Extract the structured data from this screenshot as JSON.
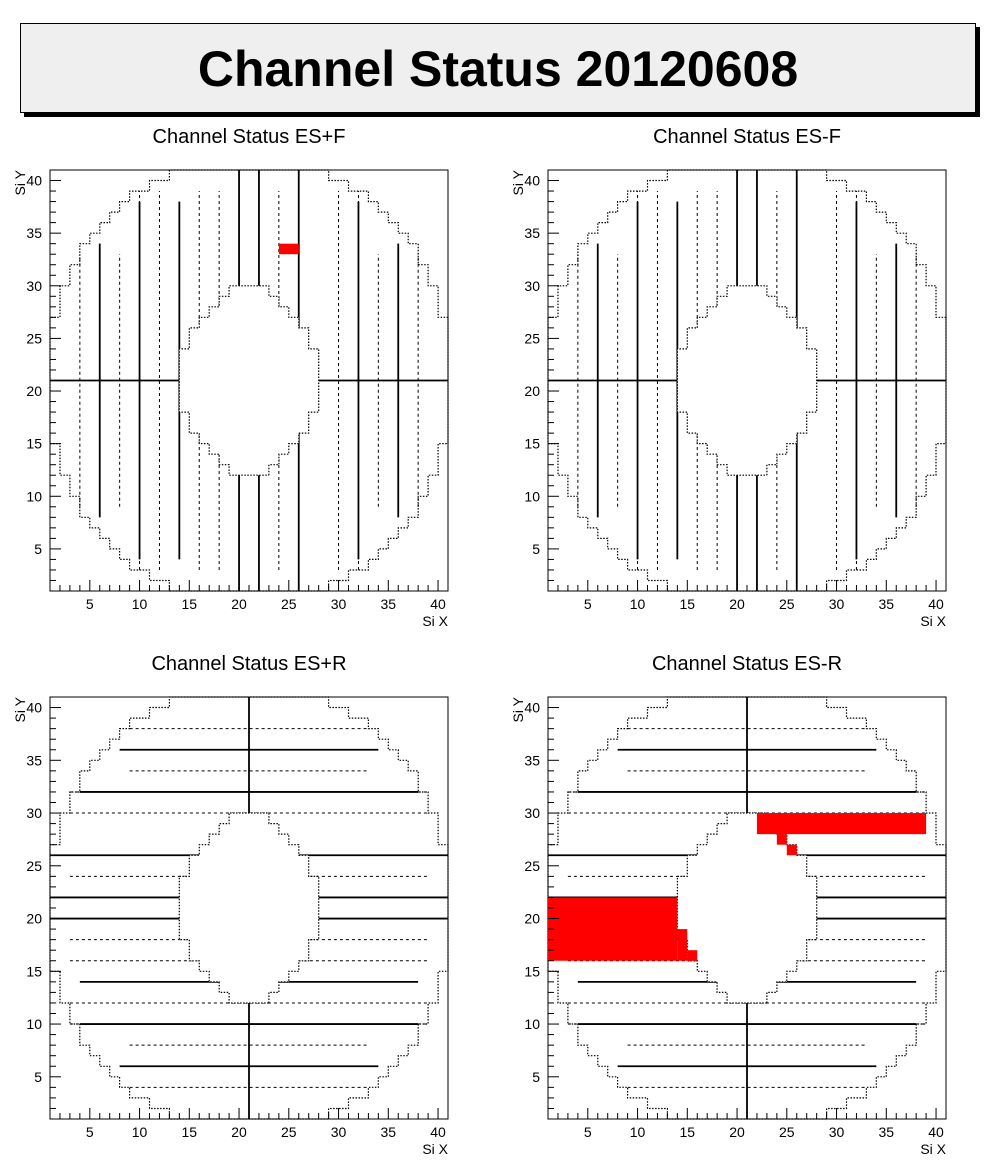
{
  "page_title": "Channel Status 20120608",
  "colors": {
    "background": "#ffffff",
    "banner": "#efefef",
    "bad_channel": "#ff0000",
    "lines": "#000000"
  },
  "chart_data": [
    {
      "type": "heatmap",
      "title": "Channel Status ES+F",
      "xlabel": "Si X",
      "ylabel": "Si Y",
      "xlim": [
        1,
        41
      ],
      "ylim": [
        1,
        41
      ],
      "xticks": [
        "5",
        "10",
        "15",
        "20",
        "25",
        "30",
        "35",
        "40"
      ],
      "yticks": [
        "5",
        "10",
        "15",
        "20",
        "25",
        "30",
        "35",
        "40"
      ],
      "orientation": "vertical",
      "bad_cells": [
        {
          "x": [
            24,
            26
          ],
          "y": [
            33,
            34
          ]
        }
      ]
    },
    {
      "type": "heatmap",
      "title": "Channel Status ES-F",
      "xlabel": "Si X",
      "ylabel": "Si Y",
      "xlim": [
        1,
        41
      ],
      "ylim": [
        1,
        41
      ],
      "xticks": [
        "5",
        "10",
        "15",
        "20",
        "25",
        "30",
        "35",
        "40"
      ],
      "yticks": [
        "5",
        "10",
        "15",
        "20",
        "25",
        "30",
        "35",
        "40"
      ],
      "orientation": "vertical",
      "bad_cells": []
    },
    {
      "type": "heatmap",
      "title": "Channel Status ES+R",
      "xlabel": "Si X",
      "ylabel": "Si Y",
      "xlim": [
        1,
        41
      ],
      "ylim": [
        1,
        41
      ],
      "xticks": [
        "5",
        "10",
        "15",
        "20",
        "25",
        "30",
        "35",
        "40"
      ],
      "yticks": [
        "5",
        "10",
        "15",
        "20",
        "25",
        "30",
        "35",
        "40"
      ],
      "orientation": "horizontal",
      "bad_cells": []
    },
    {
      "type": "heatmap",
      "title": "Channel Status ES-R",
      "xlabel": "Si X",
      "ylabel": "Si Y",
      "xlim": [
        1,
        41
      ],
      "ylim": [
        1,
        41
      ],
      "xticks": [
        "5",
        "10",
        "15",
        "20",
        "25",
        "30",
        "35",
        "40"
      ],
      "yticks": [
        "5",
        "10",
        "15",
        "20",
        "25",
        "30",
        "35",
        "40"
      ],
      "orientation": "horizontal",
      "bad_cells": [
        {
          "x": [
            22,
            39
          ],
          "y": [
            28,
            30
          ]
        },
        {
          "x": [
            24,
            25
          ],
          "y": [
            27,
            28
          ]
        },
        {
          "x": [
            25,
            26
          ],
          "y": [
            26,
            27
          ]
        },
        {
          "x": [
            1,
            14
          ],
          "y": [
            16,
            22
          ]
        },
        {
          "x": [
            14,
            15
          ],
          "y": [
            16,
            19
          ]
        },
        {
          "x": [
            15,
            16
          ],
          "y": [
            16,
            17
          ]
        }
      ]
    }
  ]
}
